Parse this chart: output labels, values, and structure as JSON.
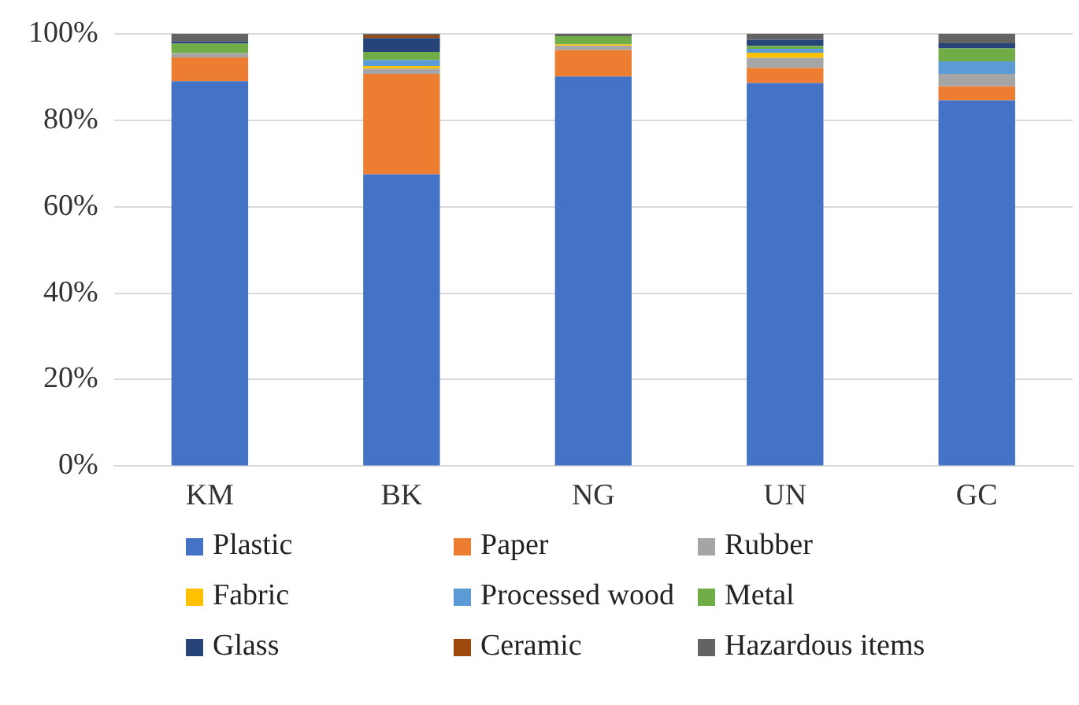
{
  "chart_data": {
    "type": "bar",
    "stacked": true,
    "categories": [
      "KM",
      "BK",
      "NG",
      "UN",
      "GC"
    ],
    "series": [
      {
        "name": "Plastic",
        "color": "#4472c4",
        "values": [
          89,
          67.5,
          90.1,
          88.6,
          84.6
        ]
      },
      {
        "name": "Paper",
        "color": "#ed7d31",
        "values": [
          5.5,
          23.2,
          6.1,
          3.5,
          3.2
        ]
      },
      {
        "name": "Rubber",
        "color": "#a5a5a5",
        "values": [
          1,
          1.2,
          1,
          2.3,
          2.9
        ]
      },
      {
        "name": "Fabric",
        "color": "#ffc000",
        "values": [
          0,
          0.6,
          0.3,
          1.2,
          0
        ]
      },
      {
        "name": "Processed wood",
        "color": "#5b9bd5",
        "values": [
          0,
          1.4,
          0,
          0.9,
          2.9
        ]
      },
      {
        "name": "Metal",
        "color": "#70ad47",
        "values": [
          2.2,
          1.9,
          1.9,
          0.7,
          3
        ]
      },
      {
        "name": "Glass",
        "color": "#264478",
        "values": [
          0.5,
          3.2,
          0,
          1.4,
          1.2
        ]
      },
      {
        "name": "Ceramic",
        "color": "#9e480e",
        "values": [
          0,
          0.6,
          0,
          0,
          0
        ]
      },
      {
        "name": "Hazardous items",
        "color": "#636363",
        "values": [
          1.8,
          0.4,
          0.6,
          1.4,
          2.2
        ]
      }
    ],
    "ylim": [
      0,
      100
    ],
    "yticks": [
      {
        "value": 0,
        "label": "0%"
      },
      {
        "value": 20,
        "label": "20%"
      },
      {
        "value": 40,
        "label": "40%"
      },
      {
        "value": 60,
        "label": "60%"
      },
      {
        "value": 80,
        "label": "80%"
      },
      {
        "value": 100,
        "label": "100%"
      }
    ],
    "grid": "y",
    "legend": "bottom"
  }
}
